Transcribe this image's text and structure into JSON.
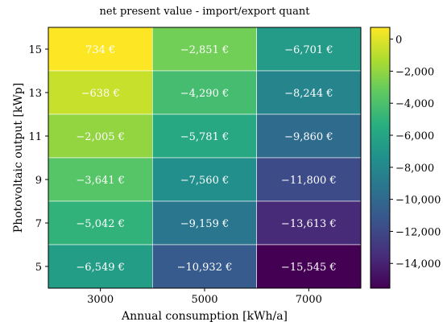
{
  "chart_data": {
    "type": "heatmap",
    "title": "net present value - import/export quant",
    "xlabel": "Annual consumption [kWh/a]",
    "ylabel": "Photovoltaic output [kWp]",
    "x_categories": [
      "3000",
      "5000",
      "7000"
    ],
    "y_categories": [
      "15",
      "13",
      "11",
      "9",
      "7",
      "5"
    ],
    "values": [
      [
        734,
        -2851,
        -6701
      ],
      [
        -638,
        -4290,
        -8244
      ],
      [
        -2005,
        -5781,
        -9860
      ],
      [
        -3641,
        -7560,
        -11800
      ],
      [
        -5042,
        -9159,
        -13613
      ],
      [
        -6549,
        -10932,
        -15545
      ]
    ],
    "cell_labels": [
      [
        "734 €",
        "−2,851 €",
        "−6,701 €"
      ],
      [
        "−638 €",
        "−4,290 €",
        "−8,244 €"
      ],
      [
        "−2,005 €",
        "−5,781 €",
        "−9,860 €"
      ],
      [
        "−3,641 €",
        "−7,560 €",
        "−11,800 €"
      ],
      [
        "−5,042 €",
        "−9,159 €",
        "−13,613 €"
      ],
      [
        "−6,549 €",
        "−10,932 €",
        "−15,545 €"
      ]
    ],
    "colormap": "viridis",
    "color_range": [
      -15545,
      734
    ],
    "colorbar_ticks": [
      0,
      -2000,
      -4000,
      -6000,
      -8000,
      -10000,
      -12000,
      -14000
    ],
    "colorbar_tick_labels": [
      "0",
      "−2,000",
      "−4,000",
      "−6,000",
      "−8,000",
      "−10,000",
      "−12,000",
      "−14,000"
    ]
  }
}
